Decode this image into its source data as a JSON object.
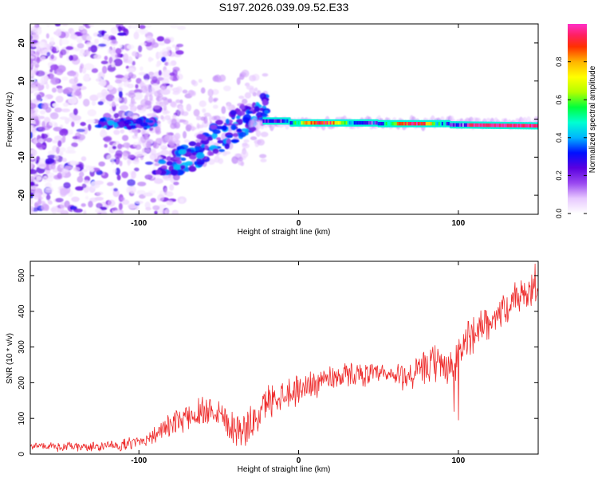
{
  "figure_title": "S197.2026.039.09.52.E33",
  "colors": {
    "snr_line": "#ee2a2a",
    "frame": "#000000",
    "background": "#ffffff"
  },
  "chart_data": [
    {
      "type": "heatmap",
      "title": "S197.2026.039.09.52.E33",
      "xlabel": "Height of straight line (km)",
      "ylabel": "Frequency (Hz)",
      "xlim": [
        -168,
        150
      ],
      "ylim": [
        -25,
        25
      ],
      "x_ticks": [
        -100,
        0,
        100
      ],
      "y_ticks": [
        20,
        10,
        0,
        -10,
        -20
      ],
      "colorbar": {
        "label": "Normalized spectral amplitude",
        "range": [
          0,
          1
        ],
        "ticks": [
          0.0,
          0.2,
          0.4,
          0.6,
          0.8
        ],
        "colormap": [
          "#ffffff",
          "#e7c8ff",
          "#9a48f0",
          "#5a00e0",
          "#0010ff",
          "#00b4ff",
          "#00ffd2",
          "#00ff3c",
          "#b4ff00",
          "#ffff00",
          "#ffb400",
          "#ff3000",
          "#ff2060",
          "#ff30c8"
        ]
      },
      "ridge_description": "scattered speckle below -100 km, rising ridge from about -90 to -30 km, narrow strong band near 0 Hz above -20 km"
    },
    {
      "type": "line",
      "xlabel": "Height of straight line (km)",
      "ylabel": "SNR (10 * v/v)",
      "xlim": [
        -168,
        150
      ],
      "ylim": [
        0,
        540
      ],
      "x_ticks": [
        -100,
        0,
        100
      ],
      "y_ticks": [
        0,
        100,
        200,
        300,
        400,
        500
      ],
      "series": [
        {
          "name": "SNR",
          "envelope_x": [
            -168,
            -150,
            -130,
            -110,
            -100,
            -90,
            -80,
            -70,
            -60,
            -55,
            -50,
            -45,
            -40,
            -35,
            -30,
            -25,
            -20,
            -15,
            -10,
            -5,
            0,
            10,
            20,
            30,
            40,
            50,
            60,
            70,
            75,
            80,
            85,
            90,
            95,
            98,
            100,
            102,
            105,
            110,
            120,
            130,
            140,
            150
          ],
          "envelope_y": [
            25,
            20,
            20,
            25,
            35,
            55,
            80,
            105,
            120,
            130,
            120,
            95,
            75,
            65,
            80,
            110,
            145,
            160,
            170,
            175,
            180,
            200,
            215,
            222,
            225,
            222,
            218,
            220,
            230,
            240,
            255,
            255,
            240,
            230,
            270,
            300,
            320,
            345,
            380,
            410,
            440,
            460
          ],
          "noise_amplitude_x": [
            -168,
            -100,
            -60,
            -30,
            0,
            50,
            80,
            100,
            150
          ],
          "noise_amplitude_y": [
            12,
            20,
            55,
            60,
            50,
            35,
            60,
            70,
            50
          ]
        }
      ]
    }
  ]
}
